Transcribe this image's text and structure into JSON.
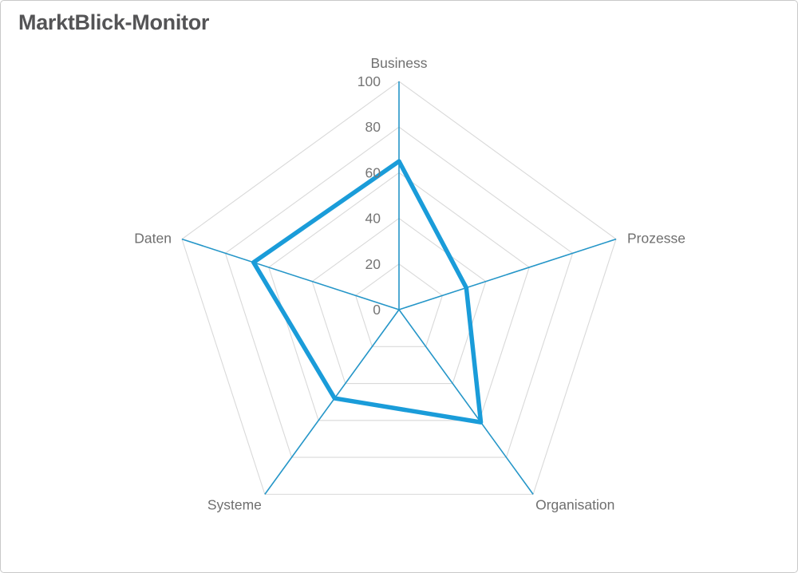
{
  "header": {
    "title": "MarktBlick-Monitor"
  },
  "chart_data": {
    "type": "radar",
    "categories": [
      "Business",
      "Prozesse",
      "Organisation",
      "Systeme",
      "Daten"
    ],
    "values": [
      65,
      31,
      61,
      48,
      67
    ],
    "ticks": [
      0,
      20,
      40,
      60,
      80,
      100
    ],
    "axis_range": [
      0,
      100
    ],
    "grid": true,
    "grid_shape": "pentagon",
    "legend": "none",
    "fill": "none",
    "colors": {
      "series_stroke": "#1a9cd9",
      "spoke_stroke": "#2596c8",
      "grid_stroke": "#d9d9d9",
      "label_color": "#6f6f6f",
      "tick_color": "#757575"
    }
  }
}
